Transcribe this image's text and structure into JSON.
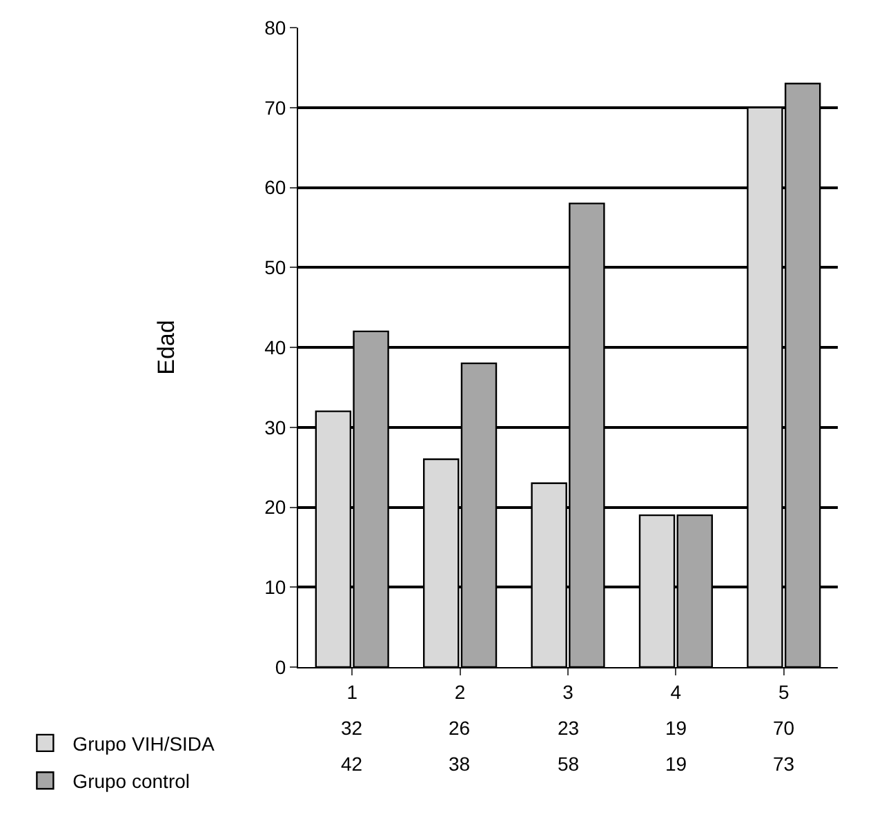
{
  "chart_data": {
    "type": "bar",
    "ylabel": "Edad",
    "categories": [
      "1",
      "2",
      "3",
      "4",
      "5"
    ],
    "series": [
      {
        "name": "Grupo VIH/SIDA",
        "color": "#d9d9d9",
        "values": [
          32,
          26,
          23,
          19,
          70
        ]
      },
      {
        "name": "Grupo control",
        "color": "#a6a6a6",
        "values": [
          42,
          38,
          58,
          19,
          73
        ]
      }
    ],
    "ylim": [
      0,
      80
    ],
    "yticks": [
      0,
      10,
      20,
      30,
      40,
      50,
      60,
      70,
      80
    ],
    "grid": "y",
    "legend": "bottom left",
    "data_labels": true
  }
}
